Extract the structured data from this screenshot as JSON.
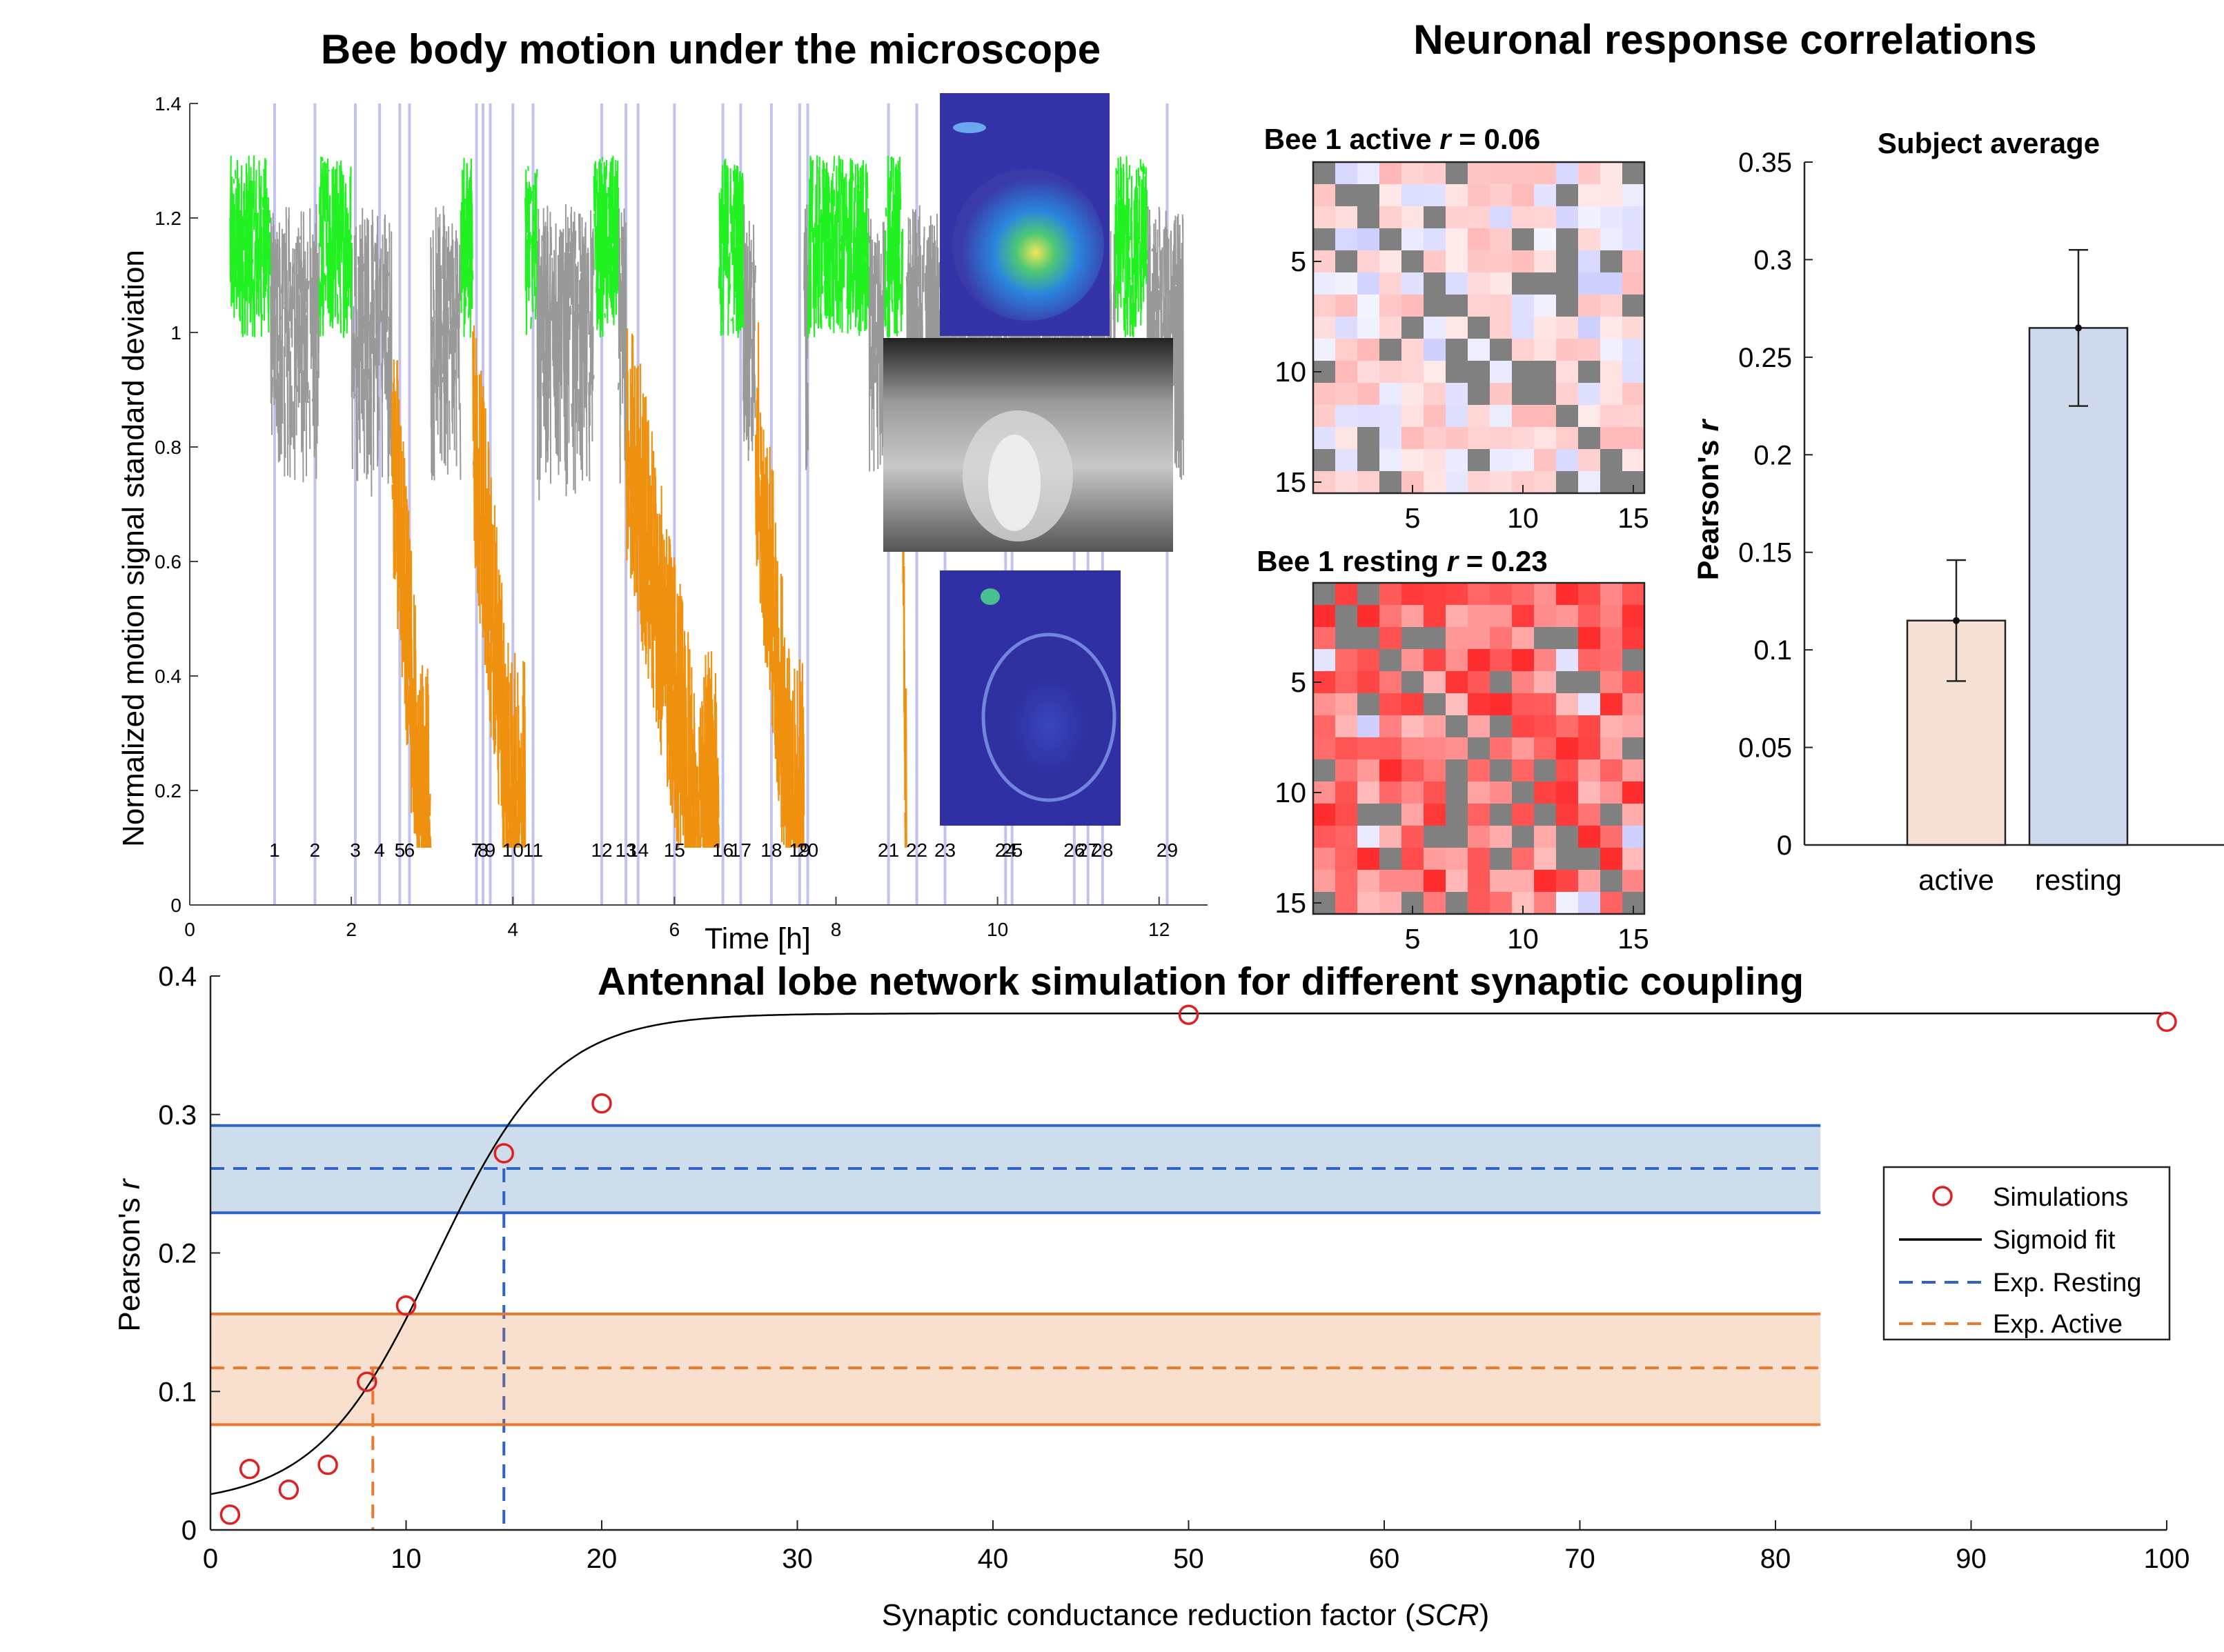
{
  "colors": {
    "active_green": "#21f021",
    "rest_gray": "#999999",
    "sleep_orange": "#f0900f",
    "vline": "#c2c2ee",
    "bar_active": "#f5e0d3",
    "bar_resting": "#cfd9ee",
    "band_blue": "#2f6fb0",
    "band_orange": "#e8792e",
    "sim_red": "#e02020"
  },
  "titles": {
    "motion": "Bee body motion under the microscope",
    "correlations": "Neuronal response correlations",
    "simulation": "Antennal lobe network simulation for different synaptic coupling"
  },
  "chart_data": [
    {
      "id": "motion",
      "type": "line",
      "title": "Bee body motion under the microscope",
      "xlabel": "Time [h]",
      "ylabel": "Normalized motion signal standard deviation",
      "xlim": [
        0,
        12.6
      ],
      "ylim": [
        0,
        1.4
      ],
      "xticks": [
        0,
        2,
        4,
        6,
        8,
        10,
        12
      ],
      "yticks": [
        0,
        0.2,
        0.4,
        0.6,
        0.8,
        1,
        1.2,
        1.4
      ],
      "ytick_labels": [
        "0",
        "0.2",
        "0.4",
        "0.6",
        "0.8",
        "1",
        "1.2",
        "1.4"
      ],
      "states": {
        "green": [
          [
            0.5,
            1.0
          ],
          [
            1.6,
            2.0
          ],
          [
            3.35,
            3.6
          ],
          [
            3.9,
            4.3
          ],
          [
            5.0,
            5.3
          ],
          [
            6.5,
            6.85
          ],
          [
            7.65,
            8.4
          ],
          [
            8.6,
            8.85
          ],
          [
            11.45,
            11.85
          ]
        ],
        "orange": [
          [
            2.5,
            2.98
          ],
          [
            3.5,
            4.15
          ],
          [
            5.4,
            6.55
          ],
          [
            7.0,
            7.6
          ],
          [
            8.82,
            8.87
          ]
        ]
      },
      "events": {
        "labels": [
          "1",
          "2",
          "3",
          "4",
          "5",
          "6",
          "7",
          "8",
          "9",
          "10",
          "11",
          "12",
          "13",
          "14",
          "15",
          "16",
          "17",
          "18",
          "19",
          "20",
          "21",
          "22",
          "23",
          "24",
          "25",
          "26",
          "27",
          "28",
          "29"
        ],
        "t": [
          1.05,
          1.55,
          2.05,
          2.35,
          2.6,
          2.72,
          3.55,
          3.63,
          3.72,
          4.0,
          4.25,
          5.1,
          5.4,
          5.55,
          6.0,
          6.6,
          6.82,
          7.2,
          7.55,
          7.65,
          8.65,
          9.0,
          9.35,
          10.1,
          10.18,
          10.95,
          11.12,
          11.3,
          12.1
        ]
      }
    },
    {
      "id": "active-matrix",
      "type": "heatmap",
      "title_prefix": "Bee 1 active",
      "r_symbol": "r",
      "r_value": " = 0.06",
      "size": 15,
      "xticks": [
        5,
        10,
        15
      ],
      "yticks": [
        5,
        10,
        15
      ],
      "strength": 0.28
    },
    {
      "id": "resting-matrix",
      "type": "heatmap",
      "title_prefix": "Bee 1 resting",
      "r_symbol": "r",
      "r_value": " = 0.23",
      "size": 15,
      "xticks": [
        5,
        10,
        15
      ],
      "yticks": [
        5,
        10,
        15
      ],
      "strength": 0.85
    },
    {
      "id": "subject-average",
      "type": "bar",
      "title": "Subject average",
      "ylabel_prefix": "Pearson's ",
      "ylabel_symbol": "r",
      "categories": [
        "active",
        "resting"
      ],
      "values": [
        0.115,
        0.265
      ],
      "errors": [
        [
          0.084,
          0.146
        ],
        [
          0.225,
          0.305
        ]
      ],
      "ylim": [
        0,
        0.35
      ],
      "yticks": [
        0,
        0.05,
        0.1,
        0.15,
        0.2,
        0.25,
        0.3,
        0.35
      ],
      "ytick_labels": [
        "0",
        "0.05",
        "0.1",
        "0.15",
        "0.2",
        "0.25",
        "0.3",
        "0.35"
      ]
    },
    {
      "id": "simulation",
      "type": "scatter",
      "title": "Antennal lobe network simulation for different synaptic coupling",
      "xlabel_prefix": "Synaptic conductance reduction factor (",
      "xlabel_symbol": "SCR",
      "xlabel_suffix": ")",
      "ylabel_prefix": "Pearson's ",
      "ylabel_symbol": "r",
      "xlim": [
        0,
        100
      ],
      "ylim": [
        0,
        0.4
      ],
      "xticks": [
        0,
        10,
        20,
        30,
        40,
        50,
        60,
        70,
        80,
        90,
        100
      ],
      "yticks": [
        0,
        0.1,
        0.2,
        0.3,
        0.4
      ],
      "ytick_labels": [
        "0",
        "0.1",
        "0.2",
        "0.3",
        "0.4"
      ],
      "simulations": {
        "x": [
          1,
          2,
          4,
          6,
          8,
          10,
          15,
          20,
          50,
          100
        ],
        "y": [
          0.011,
          0.044,
          0.029,
          0.047,
          0.107,
          0.162,
          0.272,
          0.308,
          0.372,
          0.367
        ]
      },
      "sigmoid": {
        "lower": 0.018,
        "upper": 0.373,
        "x0": 11.5,
        "k": 0.33
      },
      "resting": {
        "mean": 0.261,
        "low": 0.229,
        "high": 0.292,
        "scr": 15
      },
      "active": {
        "mean": 0.117,
        "low": 0.076,
        "high": 0.156,
        "scr": 8.3
      },
      "band_end_x": 82.3,
      "legend": [
        "Simulations",
        "Sigmoid fit",
        "Exp. Resting",
        "Exp. Active"
      ],
      "legend_position": "right"
    }
  ]
}
